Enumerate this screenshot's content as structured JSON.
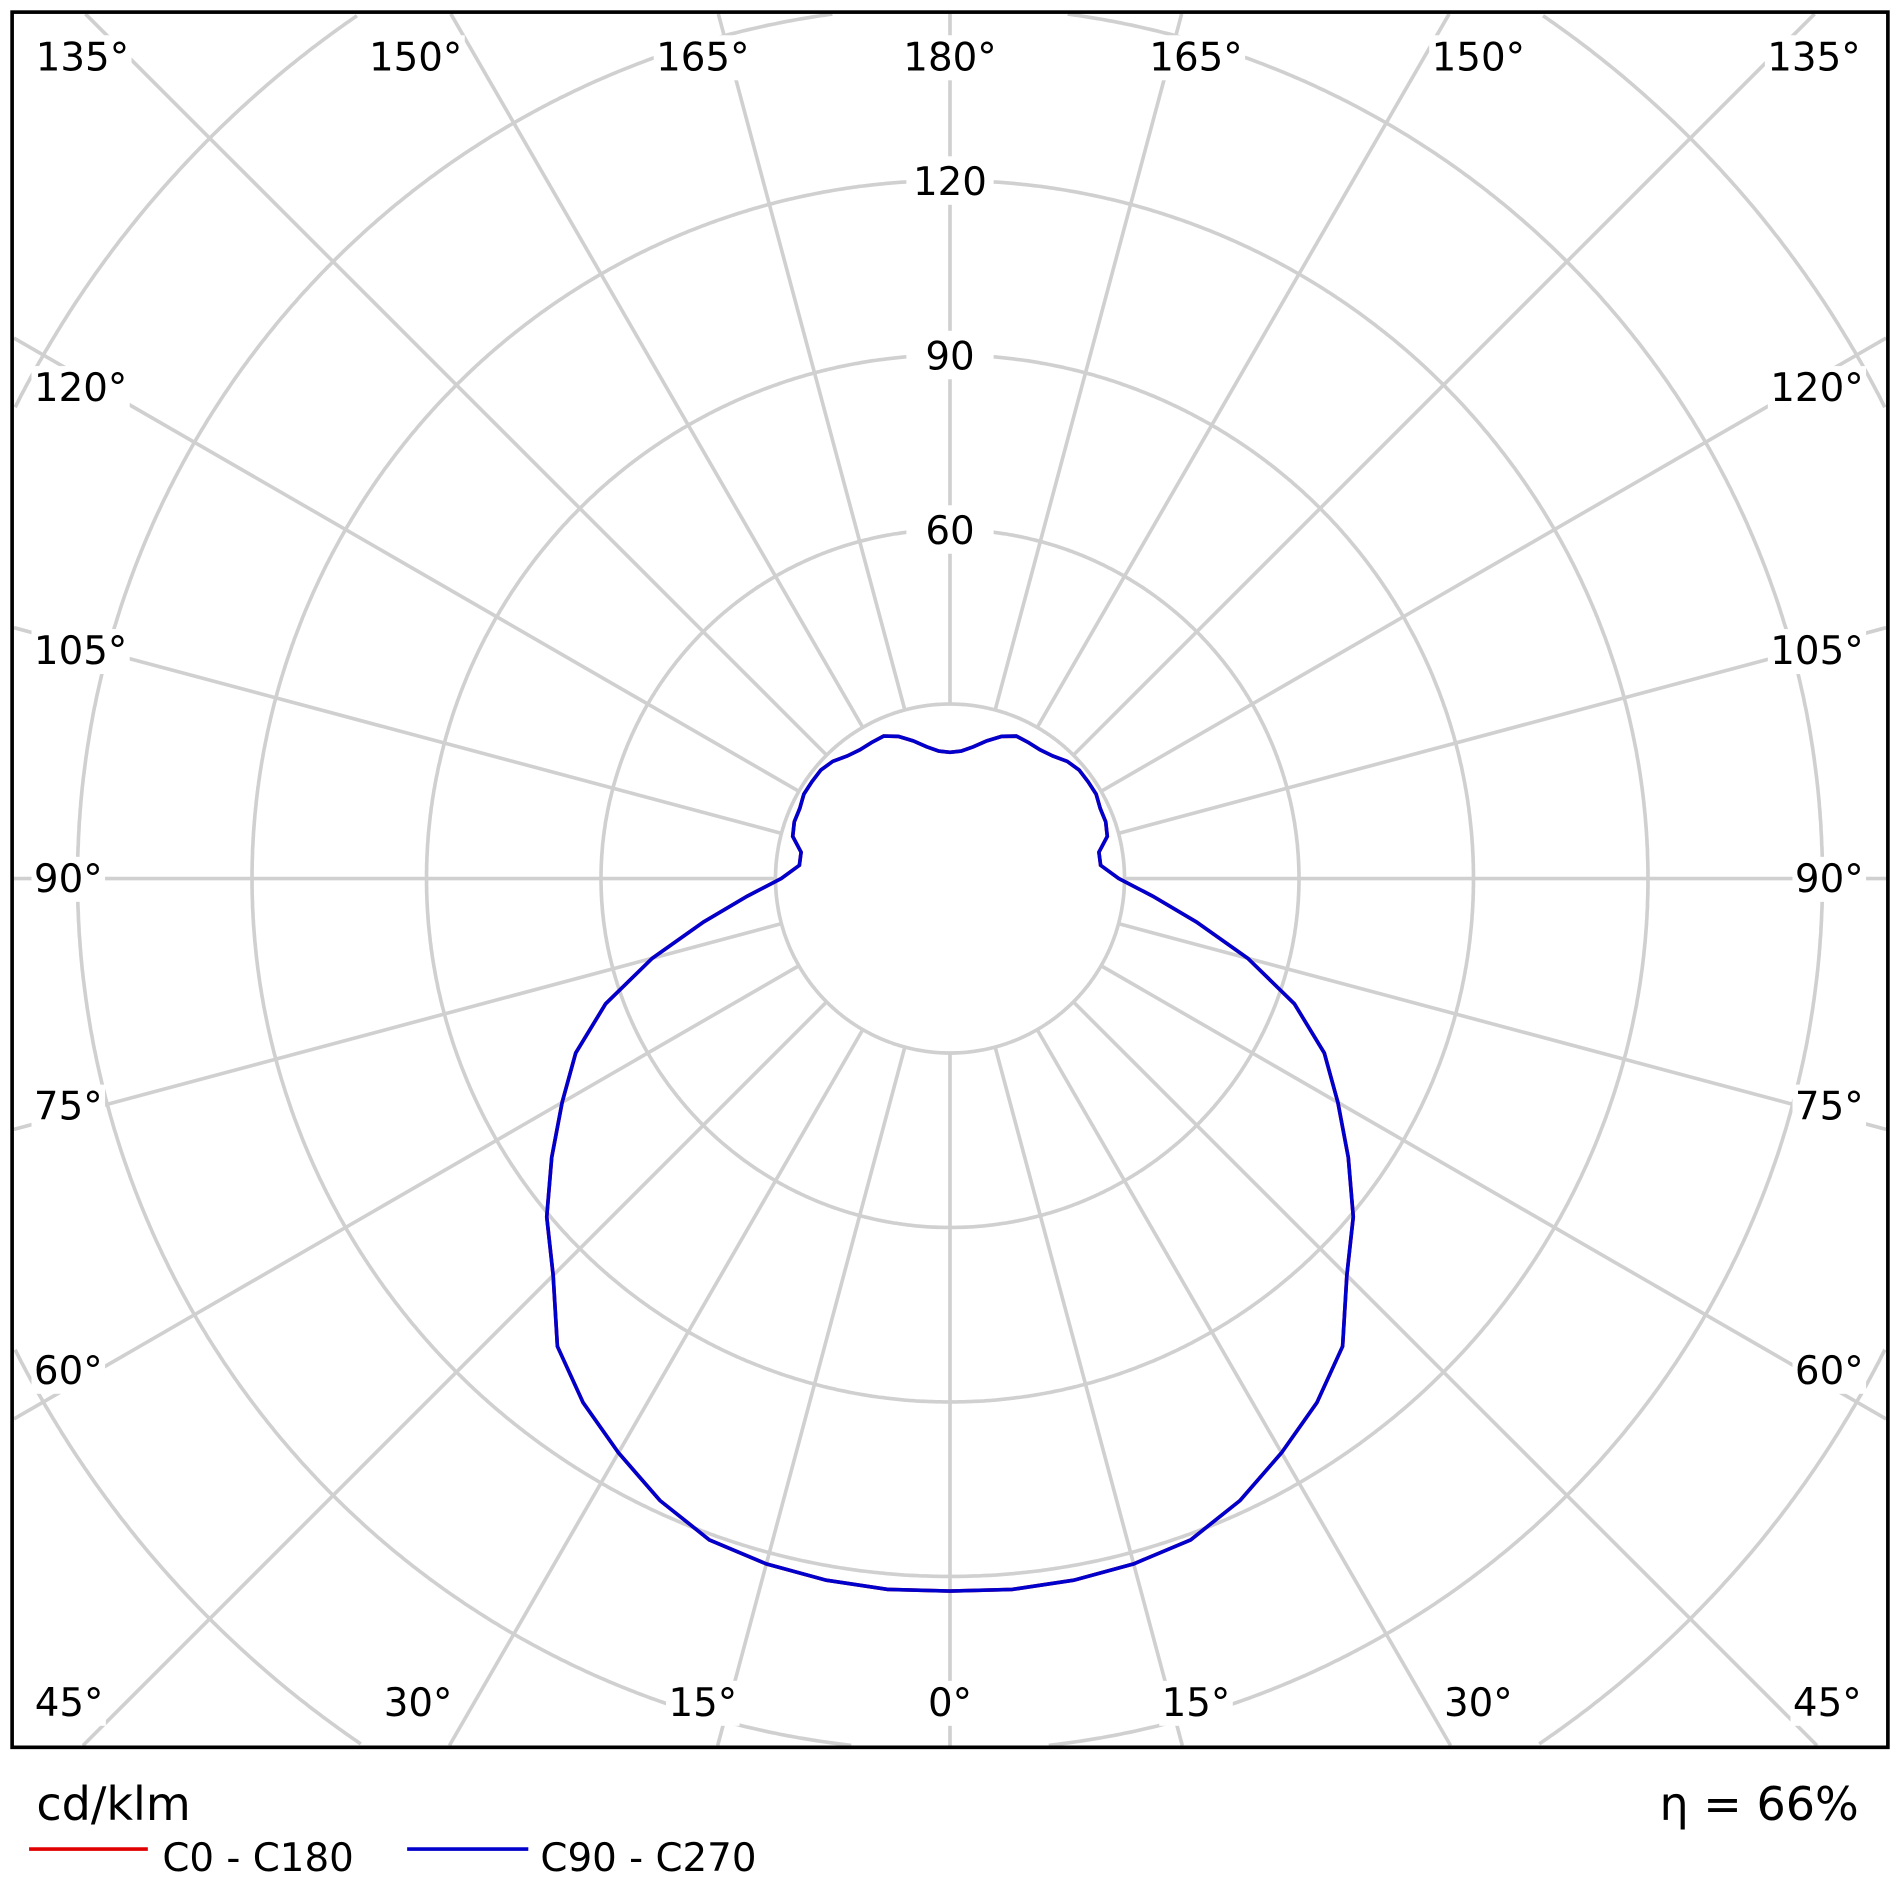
{
  "chart_data": {
    "type": "polar",
    "unit_label": "cd/klm",
    "efficiency_label": "η = 66%",
    "radial_ticks": [
      30,
      60,
      90,
      120,
      150,
      180
    ],
    "radial_tick_labels": [
      "120",
      "90",
      "60"
    ],
    "labeled_radial_ticks": [
      120,
      90,
      60
    ],
    "angle_labels": {
      "top": [
        "135°",
        "150°",
        "165°",
        "180°",
        "165°",
        "150°",
        "135°"
      ],
      "left": [
        "120°",
        "105°",
        "90°",
        "75°",
        "60°"
      ],
      "right": [
        "120°",
        "105°",
        "90°",
        "75°",
        "60°"
      ],
      "bottom": [
        "45°",
        "30°",
        "15°",
        "0°",
        "15°",
        "30°",
        "45°"
      ]
    },
    "grid": true,
    "gamma": [
      0,
      5,
      10,
      15,
      20,
      25,
      30,
      35,
      40,
      45,
      50,
      55,
      60,
      65,
      70,
      75,
      80,
      85,
      90,
      95,
      100,
      105,
      110,
      115,
      120,
      125,
      130,
      135,
      140,
      145,
      150,
      155,
      160,
      165,
      170,
      175,
      180
    ],
    "series": [
      {
        "name": "C0 - C180",
        "color": "#e00000",
        "values": [
          122.5,
          122.7,
          122.5,
          122,
          121,
          118,
          114,
          110,
          105,
          96.5,
          90.5,
          83.6,
          77,
          71,
          63,
          53,
          43,
          35,
          29,
          26,
          26,
          28,
          28.5,
          28.5,
          29,
          29,
          29,
          28.5,
          27.5,
          27,
          27,
          27,
          26,
          24.5,
          23,
          22,
          21.7
        ]
      },
      {
        "name": "C90 - C270",
        "color": "#0000cc",
        "values": [
          122.5,
          122.7,
          122.5,
          122,
          121,
          118,
          114,
          110,
          105,
          96.5,
          90.5,
          83.6,
          77,
          71,
          63,
          53,
          43,
          35,
          29,
          26,
          26,
          28,
          28.5,
          28.5,
          29,
          29,
          29,
          28.5,
          27.5,
          27,
          27,
          27,
          26,
          24.5,
          23,
          22,
          21.7
        ]
      }
    ]
  }
}
